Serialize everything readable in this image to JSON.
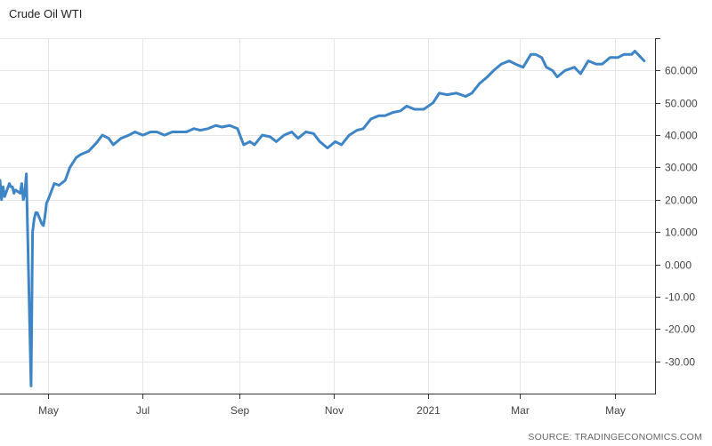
{
  "chart_data": {
    "type": "line",
    "title": "Crude Oil WTI",
    "source": "SOURCE: TRADINGECONOMICS.COM",
    "series": [
      {
        "color": "#3d85c6",
        "x": [
          "2020-03-31",
          "2020-04-01",
          "2020-04-02",
          "2020-04-03",
          "2020-04-06",
          "2020-04-07",
          "2020-04-08",
          "2020-04-09",
          "2020-04-10",
          "2020-04-13",
          "2020-04-14",
          "2020-04-15",
          "2020-04-16",
          "2020-04-17",
          "2020-04-20",
          "2020-04-21",
          "2020-04-22",
          "2020-04-23",
          "2020-04-24",
          "2020-04-27",
          "2020-04-28",
          "2020-04-29",
          "2020-04-30",
          "2020-05-01",
          "2020-05-05",
          "2020-05-08",
          "2020-05-12",
          "2020-05-15",
          "2020-05-19",
          "2020-05-22",
          "2020-05-27",
          "2020-06-01",
          "2020-06-05",
          "2020-06-09",
          "2020-06-12",
          "2020-06-17",
          "2020-06-22",
          "2020-06-26",
          "2020-07-01",
          "2020-07-06",
          "2020-07-10",
          "2020-07-15",
          "2020-07-20",
          "2020-07-24",
          "2020-07-29",
          "2020-08-03",
          "2020-08-07",
          "2020-08-12",
          "2020-08-17",
          "2020-08-21",
          "2020-08-26",
          "2020-08-31",
          "2020-09-04",
          "2020-09-08",
          "2020-09-11",
          "2020-09-16",
          "2020-09-21",
          "2020-09-25",
          "2020-09-30",
          "2020-10-05",
          "2020-10-09",
          "2020-10-14",
          "2020-10-19",
          "2020-10-23",
          "2020-10-28",
          "2020-11-02",
          "2020-11-06",
          "2020-11-11",
          "2020-11-16",
          "2020-11-20",
          "2020-11-25",
          "2020-11-30",
          "2020-12-04",
          "2020-12-09",
          "2020-12-14",
          "2020-12-18",
          "2020-12-23",
          "2020-12-29",
          "2021-01-04",
          "2021-01-08",
          "2021-01-13",
          "2021-01-19",
          "2021-01-25",
          "2021-01-29",
          "2021-02-03",
          "2021-02-08",
          "2021-02-12",
          "2021-02-17",
          "2021-02-22",
          "2021-02-26",
          "2021-03-03",
          "2021-03-08",
          "2021-03-11",
          "2021-03-15",
          "2021-03-18",
          "2021-03-22",
          "2021-03-25",
          "2021-03-30",
          "2021-04-05",
          "2021-04-09",
          "2021-04-14",
          "2021-04-19",
          "2021-04-23",
          "2021-04-28",
          "2021-05-03",
          "2021-05-07",
          "2021-05-12",
          "2021-05-14",
          "2021-05-18",
          "2021-05-20"
        ],
        "values": [
          26,
          20,
          24,
          21,
          25,
          24,
          24,
          22,
          23,
          22,
          25,
          20,
          22,
          28,
          -37.6,
          10,
          14,
          16,
          16,
          12.5,
          12,
          15,
          19,
          20,
          25,
          24.5,
          26,
          30,
          33,
          34,
          35,
          37.5,
          40,
          39,
          37,
          39,
          40,
          41,
          40,
          41,
          41,
          40,
          41,
          41,
          41,
          42,
          41.5,
          42,
          43,
          42.5,
          43,
          42,
          37,
          38,
          37,
          40,
          39.5,
          38,
          40,
          41,
          39,
          41,
          40.5,
          38,
          36,
          38,
          37,
          40,
          41.5,
          42,
          45,
          46,
          46,
          47,
          47.5,
          49,
          48,
          48,
          50,
          53,
          52.5,
          53,
          52,
          53,
          56,
          58,
          60,
          62,
          63,
          62,
          61,
          65,
          65,
          64,
          61,
          60,
          58,
          60,
          61,
          59,
          63,
          62,
          62,
          64,
          64,
          65,
          65,
          66,
          64,
          63
        ]
      }
    ],
    "y_ticks": [
      "60.000",
      "50.000",
      "40.000",
      "30.000",
      "20.000",
      "10.000",
      "0.000",
      "-10.00",
      "-20.00",
      "-30.00"
    ],
    "y_tick_values": [
      60,
      50,
      40,
      30,
      20,
      10,
      0,
      -10,
      -20,
      -30
    ],
    "x_ticks": [
      "May",
      "Jul",
      "Sep",
      "Nov",
      "2021",
      "Mar",
      "May"
    ],
    "x_tick_dates": [
      "2020-05-01",
      "2020-07-01",
      "2020-09-01",
      "2020-11-01",
      "2021-01-01",
      "2021-03-01",
      "2021-05-01"
    ],
    "ylim": [
      -40,
      70
    ],
    "xlim": [
      "2020-03-31",
      "2021-05-27"
    ],
    "grid": true,
    "xlabel": "",
    "ylabel": ""
  }
}
